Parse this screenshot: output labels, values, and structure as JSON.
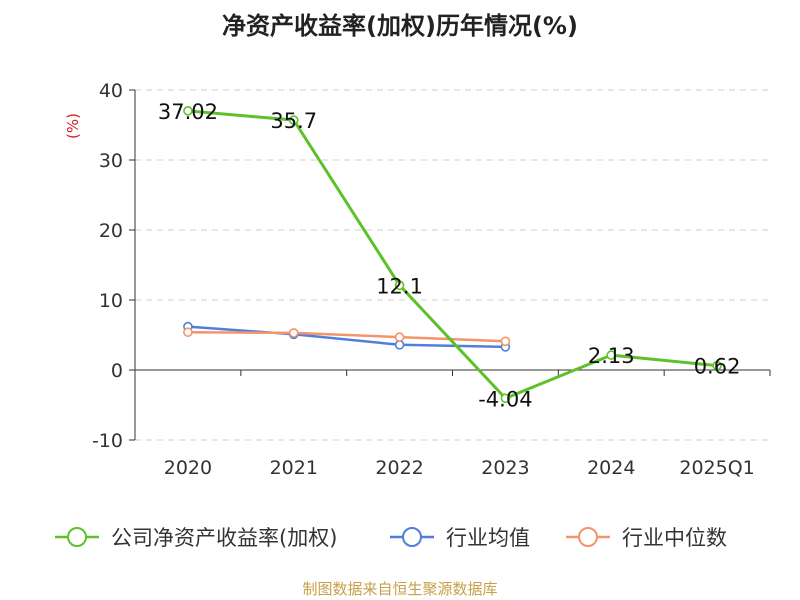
{
  "title": "净资产收益率(加权)历年情况(%)",
  "source": "制图数据来自恒生聚源数据库",
  "chart_data": {
    "type": "line",
    "ylabel": "(%)",
    "ylim": [
      -10,
      40
    ],
    "yticks": [
      -10,
      0,
      10,
      20,
      30,
      40
    ],
    "categories": [
      "2020",
      "2021",
      "2022",
      "2023",
      "2024",
      "2025Q1"
    ],
    "grid": true,
    "legend_position": "bottom",
    "series": [
      {
        "name": "公司净资产收益率(加权)",
        "color": "#5ec12a",
        "values": [
          37.02,
          35.7,
          12.1,
          -4.04,
          2.13,
          0.62
        ],
        "labels": [
          "37.02",
          "35.7",
          "12.1",
          "-4.04",
          "2.13",
          "0.62"
        ]
      },
      {
        "name": "行业均值",
        "color": "#4f7fdc",
        "values": [
          6.2,
          5.1,
          3.6,
          3.3,
          null,
          null
        ]
      },
      {
        "name": "行业中位数",
        "color": "#f3946a",
        "values": [
          5.4,
          5.3,
          4.7,
          4.1,
          null,
          null
        ]
      }
    ]
  }
}
